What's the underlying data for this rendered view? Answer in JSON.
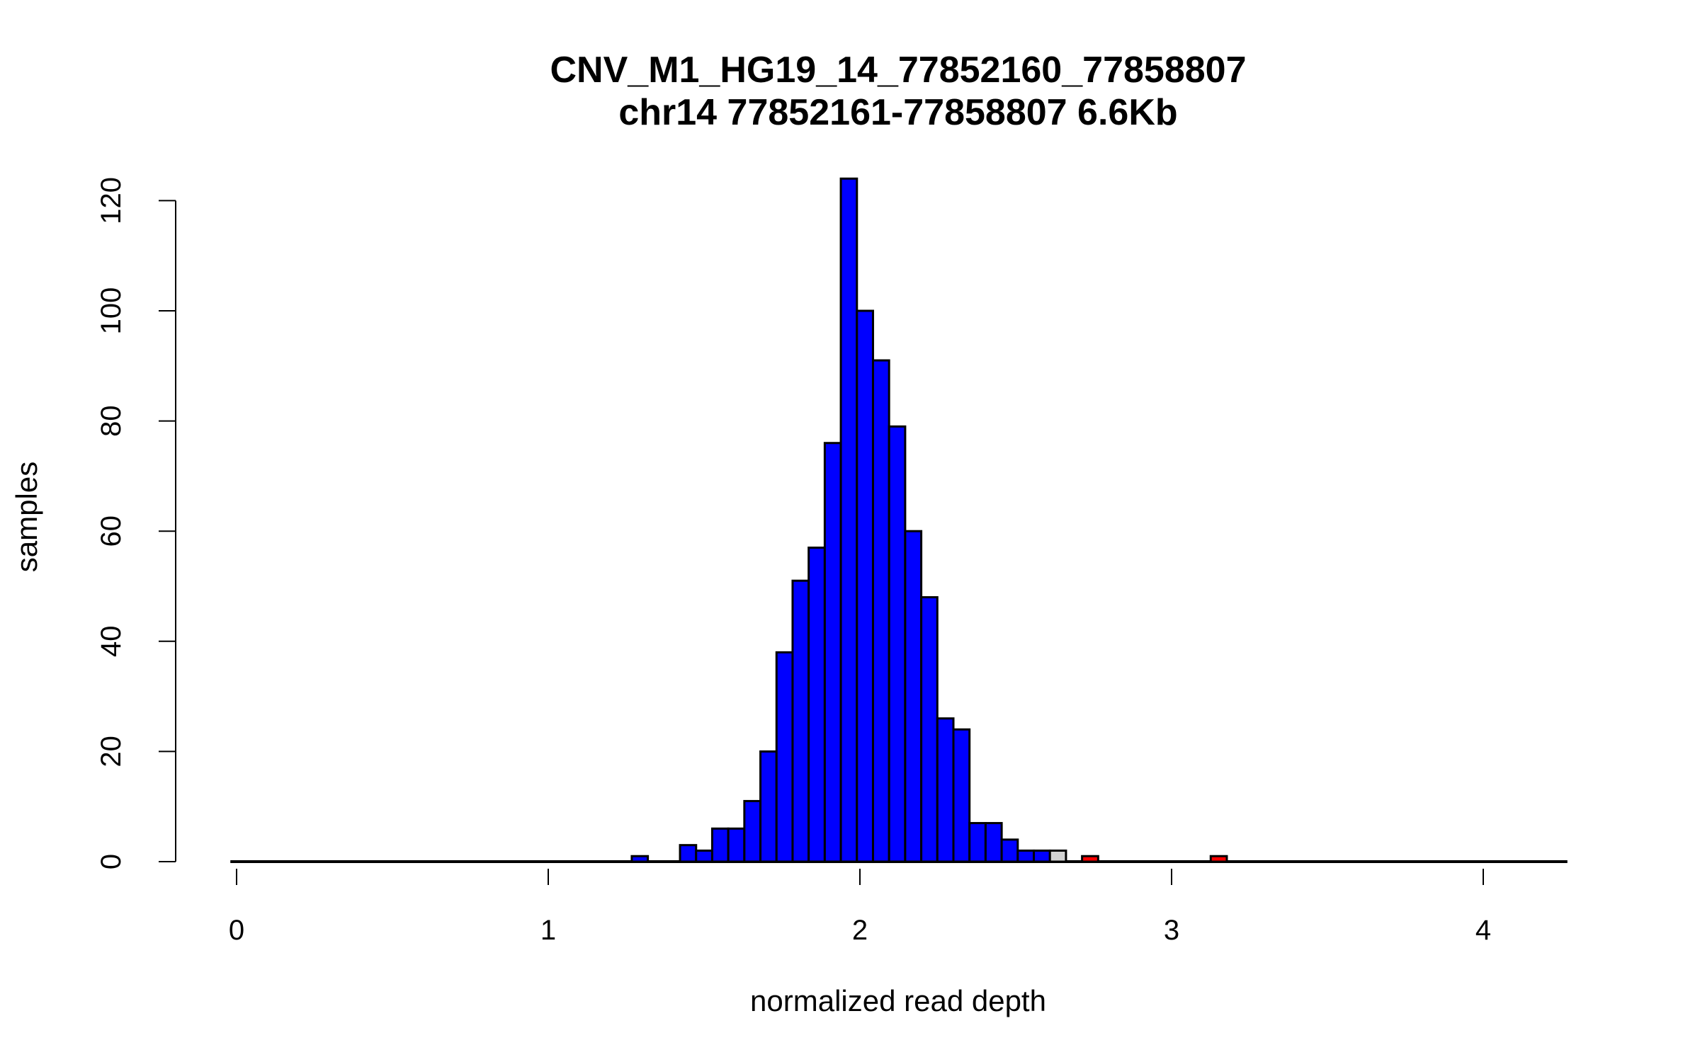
{
  "chart_data": {
    "type": "bar",
    "title": "CNV_M1_HG19_14_77852160_77858807",
    "subtitle": "chr14 77852161-77858807 6.6Kb",
    "xlabel": "normalized read depth",
    "ylabel": "samples",
    "xlim": [
      0,
      4.25
    ],
    "ylim": [
      0,
      124
    ],
    "xticks": [
      "0",
      "1",
      "2",
      "3",
      "4"
    ],
    "yticks": [
      "0",
      "20",
      "40",
      "60",
      "80",
      "100",
      "120"
    ],
    "grid": false,
    "bin_start": 1.268,
    "bin_width": 0.0516,
    "baseline_range": [
      -0.02,
      4.27
    ],
    "counts": [
      1,
      0,
      0,
      3,
      2,
      6,
      6,
      11,
      20,
      38,
      51,
      57,
      76,
      124,
      100,
      91,
      79,
      60,
      48,
      26,
      24,
      7,
      7,
      4,
      2,
      2,
      2,
      0,
      1,
      0,
      0,
      0,
      0,
      0,
      0,
      0,
      1
    ],
    "bar_colors": {
      "normal": "#0000ff",
      "gray": "#d3d3d3",
      "red": "#ff0000"
    },
    "bar_color_by_bin": [
      "normal",
      "normal",
      "normal",
      "normal",
      "normal",
      "normal",
      "normal",
      "normal",
      "normal",
      "normal",
      "normal",
      "normal",
      "normal",
      "normal",
      "normal",
      "normal",
      "normal",
      "normal",
      "normal",
      "normal",
      "normal",
      "normal",
      "normal",
      "normal",
      "normal",
      "normal",
      "gray",
      "normal",
      "red",
      "normal",
      "normal",
      "normal",
      "normal",
      "normal",
      "normal",
      "normal",
      "red"
    ]
  }
}
